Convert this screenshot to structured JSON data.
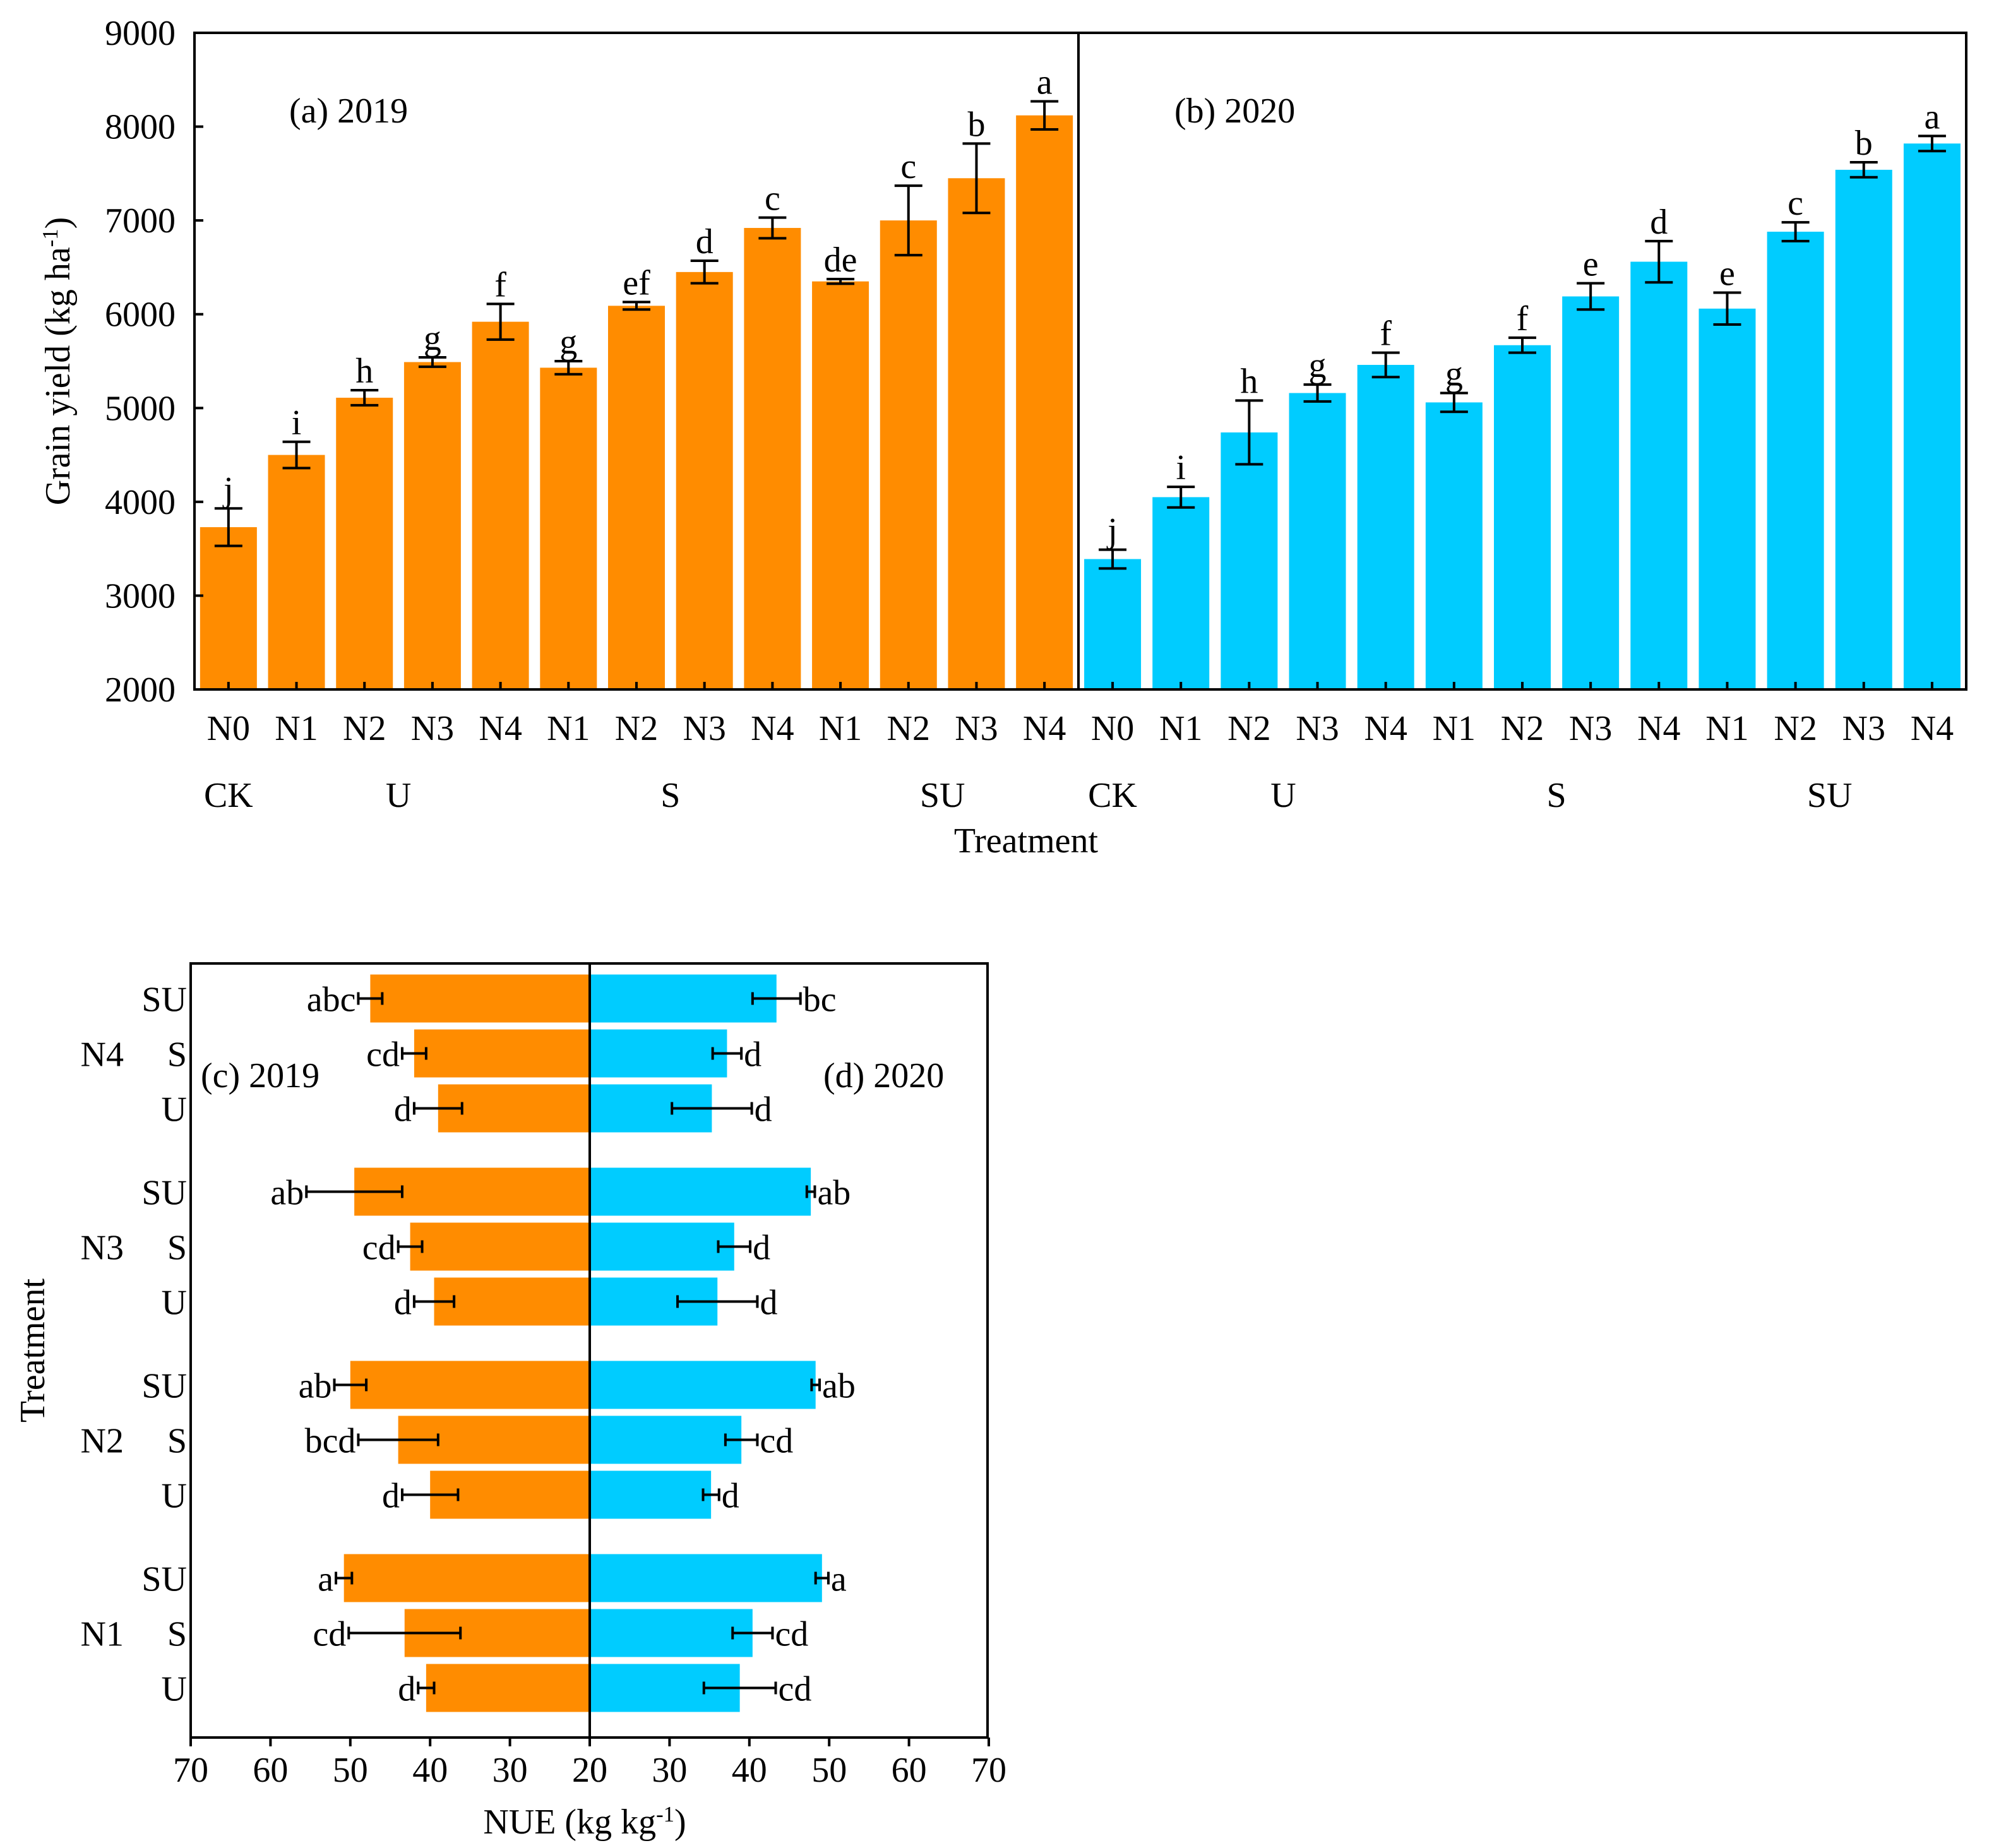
{
  "chart_data": [
    {
      "type": "bar",
      "panel": "grain-yield",
      "ylabel": "Grain yield (kg ha",
      "ylabel_sup": "-1",
      "ylabel_end": ")",
      "xlabel": "Treatment",
      "ylim": [
        2000,
        9000
      ],
      "yticks": [
        2000,
        3000,
        4000,
        5000,
        6000,
        7000,
        8000,
        9000
      ],
      "categories": [
        "N0",
        "N1",
        "N2",
        "N3",
        "N4",
        "N1",
        "N2",
        "N3",
        "N4",
        "N1",
        "N2",
        "N3",
        "N4"
      ],
      "groups": [
        {
          "label": "CK",
          "start": 0,
          "end": 0
        },
        {
          "label": "U",
          "start": 1,
          "end": 4
        },
        {
          "label": "S",
          "start": 5,
          "end": 8
        },
        {
          "label": "SU",
          "start": 9,
          "end": 12
        }
      ],
      "series": [
        {
          "name": "(a) 2019",
          "color": "#FF8C00",
          "values": [
            3730,
            4500,
            5110,
            5490,
            5920,
            5430,
            6090,
            6450,
            6920,
            6350,
            7000,
            7450,
            8120
          ],
          "errors": [
            200,
            140,
            80,
            50,
            190,
            70,
            40,
            120,
            110,
            25,
            370,
            370,
            150
          ],
          "letters": [
            "j",
            "i",
            "h",
            "g",
            "f",
            "g",
            "ef",
            "d",
            "c",
            "de",
            "c",
            "b",
            "a"
          ]
        },
        {
          "name": "(b) 2020",
          "color": "#00CCFF",
          "values": [
            3390,
            4050,
            4740,
            5160,
            5460,
            5060,
            5670,
            6190,
            6560,
            6060,
            6880,
            7540,
            7820
          ],
          "errors": [
            100,
            110,
            340,
            90,
            130,
            100,
            80,
            140,
            220,
            170,
            100,
            80,
            80
          ],
          "letters": [
            "j",
            "i",
            "h",
            "g",
            "f",
            "g",
            "f",
            "e",
            "d",
            "e",
            "c",
            "b",
            "a"
          ]
        }
      ]
    },
    {
      "type": "bar",
      "orientation": "horizontal",
      "panel": "nue",
      "xlabel": "NUE (kg kg",
      "xlabel_sup": "-1",
      "xlabel_end": ")",
      "ylabel": "Treatment",
      "left_ticks": [
        70,
        60,
        50,
        40,
        30,
        20
      ],
      "right_ticks": [
        20,
        30,
        40,
        50,
        60,
        70
      ],
      "groups": [
        {
          "label": "N4",
          "rows": [
            "SU",
            "S",
            "U"
          ]
        },
        {
          "label": "N3",
          "rows": [
            "SU",
            "S",
            "U"
          ]
        },
        {
          "label": "N2",
          "rows": [
            "SU",
            "S",
            "U"
          ]
        },
        {
          "label": "N1",
          "rows": [
            "SU",
            "S",
            "U"
          ]
        }
      ],
      "series": [
        {
          "name": "(c) 2019",
          "color": "#FF8C00",
          "values": [
            47.5,
            42,
            39,
            49.5,
            42.5,
            39.5,
            50,
            44,
            40,
            50.8,
            43.2,
            40.5
          ],
          "errors": [
            1.5,
            1.5,
            3,
            6,
            1.5,
            2.5,
            2,
            5,
            3.5,
            1,
            7,
            1
          ],
          "letters": [
            "abc",
            "cd",
            "d",
            "ab",
            "cd",
            "d",
            "ab",
            "bcd",
            "d",
            "a",
            "cd",
            "d"
          ]
        },
        {
          "name": "(d) 2020",
          "color": "#00CCFF",
          "values": [
            43.4,
            37.2,
            35.3,
            47.7,
            38.1,
            36,
            48.3,
            39,
            35.2,
            49.1,
            40.4,
            38.8
          ],
          "errors": [
            3,
            1.8,
            5,
            0.5,
            2,
            5,
            0.5,
            2,
            1,
            0.8,
            2.5,
            4.5
          ],
          "letters": [
            "bc",
            "d",
            "d",
            "ab",
            "d",
            "d",
            "ab",
            "cd",
            "d",
            "a",
            "cd",
            "cd"
          ]
        }
      ]
    }
  ]
}
